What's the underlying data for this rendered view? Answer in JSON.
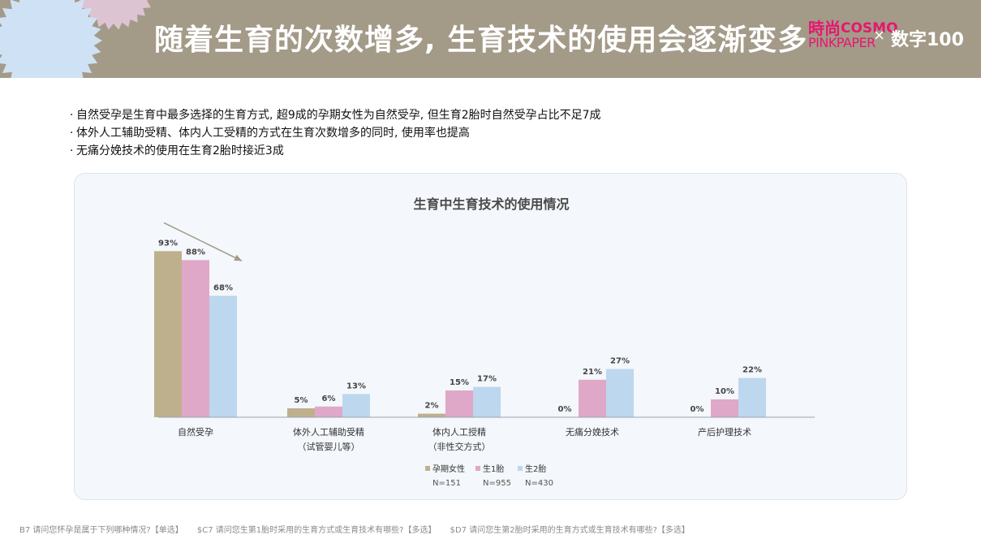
{
  "header": {
    "title": "随着生育的次数增多, 生育技术的使用会逐渐变多",
    "brand_cn": "時尚",
    "brand_cosmo": "COSMO",
    "brand_pink": "PINKPAPER",
    "brand_x": "×",
    "brand_partner": "数字100"
  },
  "bullets": [
    "自然受孕是生育中最多选择的生育方式, 超9成的孕期女性为自然受孕, 但生育2胎时自然受孕占比不足7成",
    "体外人工辅助受精、体内人工受精的方式在生育次数增多的同时, 使用率也提高",
    "无痛分娩技术的使用在生育2胎时接近3成"
  ],
  "chart_data": {
    "type": "bar",
    "title": "生育中生育技术的使用情况",
    "categories": [
      [
        "自然受孕"
      ],
      [
        "体外人工辅助受精",
        "（试管婴儿等）"
      ],
      [
        "体内人工授精",
        "（非性交方式）"
      ],
      [
        "无痛分娩技术"
      ],
      [
        "产后护理技术"
      ]
    ],
    "series": [
      {
        "name": "孕期女性",
        "n": "N=151",
        "color": "#bfb08d",
        "values": [
          93,
          5,
          2,
          0,
          0
        ]
      },
      {
        "name": "生1胎",
        "n": "N=955",
        "color": "#e0a8c8",
        "values": [
          88,
          6,
          15,
          21,
          10
        ]
      },
      {
        "name": "生2胎",
        "n": "N=430",
        "color": "#bdd7ee",
        "values": [
          68,
          13,
          17,
          27,
          22
        ]
      }
    ],
    "value_suffix": "%",
    "ylim": [
      0,
      100
    ],
    "grid": false,
    "legend_position": "bottom",
    "annotation": "down-arrow"
  },
  "footnotes": [
    "B7 请问您怀孕是属于下列哪种情况?【单选】",
    "$C7 请问您生第1胎时采用的生育方式或生育技术有哪些?【多选】",
    "$D7 请问您生第2胎时采用的生育方式或生育技术有哪些?【多选】"
  ]
}
